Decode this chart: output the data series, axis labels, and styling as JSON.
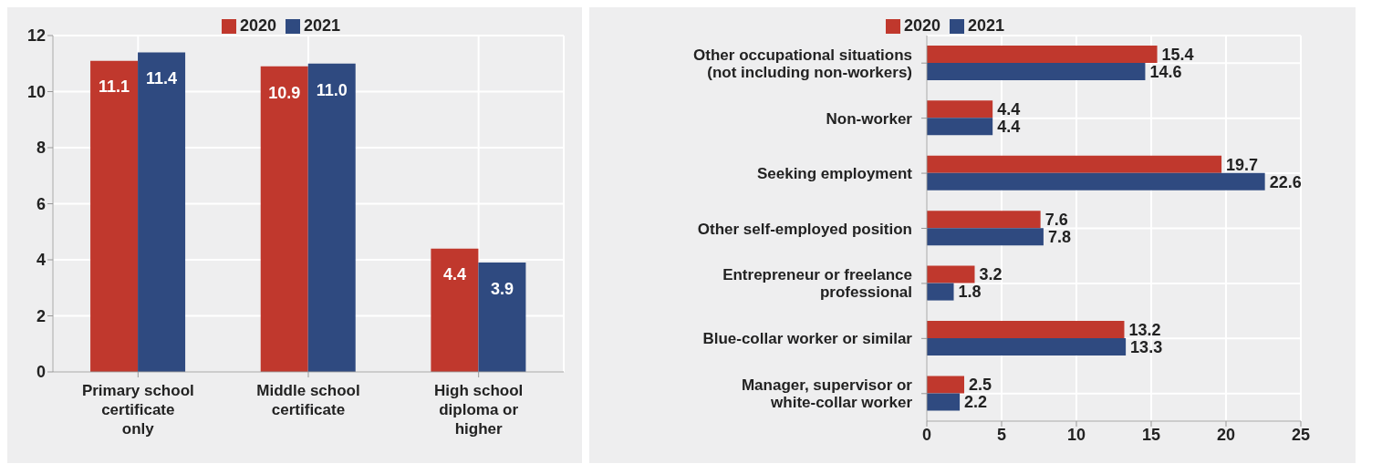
{
  "chart_data": [
    {
      "type": "bar",
      "categories": [
        "Primary school certificate only",
        "Middle school certificate",
        "High school diploma or higher"
      ],
      "series": [
        {
          "name": "2020",
          "color": "#c0382d",
          "values": [
            11.1,
            10.9,
            4.4
          ],
          "value_labels": [
            "11.1",
            "10.9",
            "4.4"
          ]
        },
        {
          "name": "2021",
          "color": "#2f4a80",
          "values": [
            11.4,
            11.0,
            3.9
          ],
          "value_labels": [
            "11.4",
            "11.0",
            "3.9"
          ]
        }
      ],
      "ylim": [
        0,
        12
      ],
      "yticks": [
        0,
        2,
        4,
        6,
        8,
        10,
        12
      ],
      "grid": true,
      "legend": "top"
    },
    {
      "type": "bar",
      "orientation": "horizontal",
      "categories": [
        "Other occupational situations (not including non-workers)",
        "Non-worker",
        "Seeking employment",
        "Other self-employed position",
        "Entrepreneur or freelance professional",
        "Blue-collar worker or similar",
        "Manager, supervisor or white-collar worker"
      ],
      "series": [
        {
          "name": "2020",
          "color": "#c0382d",
          "values": [
            15.4,
            4.4,
            19.7,
            7.6,
            3.2,
            13.2,
            2.5
          ],
          "value_labels": [
            "15.4",
            "4.4",
            "19.7",
            "7.6",
            "3.2",
            "13.2",
            "2.5"
          ]
        },
        {
          "name": "2021",
          "color": "#2f4a80",
          "values": [
            14.6,
            4.4,
            22.6,
            7.8,
            1.8,
            13.3,
            2.2
          ],
          "value_labels": [
            "14.6",
            "4.4",
            "22.6",
            "7.8",
            "1.8",
            "13.3",
            "2.2"
          ]
        }
      ],
      "xlim": [
        0,
        25
      ],
      "xticks": [
        0,
        5,
        10,
        15,
        20,
        25
      ],
      "grid": true,
      "legend": "top"
    }
  ]
}
